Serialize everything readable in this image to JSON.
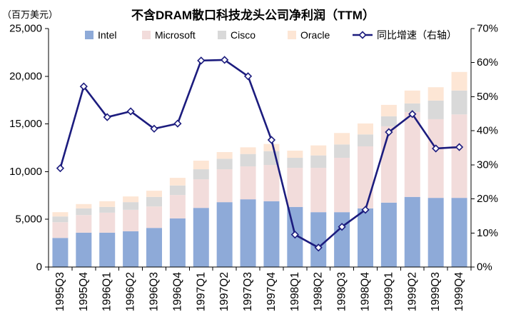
{
  "chart_data": {
    "type": "bar",
    "stacked": true,
    "title": "不含DRAM散口科技龙头公司净利润（TTM）",
    "ylabel": "（百万美元）",
    "categories": [
      "1995Q3",
      "1995Q4",
      "1996Q1",
      "1996Q2",
      "1996Q3",
      "1996Q4",
      "1997Q1",
      "1997Q2",
      "1997Q3",
      "1997Q4",
      "1998Q1",
      "1998Q2",
      "1998Q3",
      "1998Q4",
      "1999Q1",
      "1999Q2",
      "1999Q3",
      "1999Q4"
    ],
    "ylim": [
      0,
      25000
    ],
    "yticks": [
      0,
      5000,
      10000,
      15000,
      20000,
      25000
    ],
    "ytick_labels": [
      "0",
      "5,000",
      "10,000",
      "15,000",
      "20,000",
      "25,000"
    ],
    "y2lim": [
      0,
      70
    ],
    "y2ticks": [
      0,
      10,
      20,
      30,
      40,
      50,
      60,
      70
    ],
    "y2tick_labels": [
      "0%",
      "10%",
      "20%",
      "30%",
      "40%",
      "50%",
      "60%",
      "70%"
    ],
    "legend": "top",
    "grid": false,
    "series": [
      {
        "name": "Intel",
        "type": "bar",
        "axis": "left",
        "color": "#8eaad8",
        "values": [
          3050,
          3600,
          3600,
          3750,
          4100,
          5100,
          6200,
          6800,
          7100,
          6900,
          6300,
          5750,
          5750,
          6150,
          6750,
          7350,
          7250,
          7250
        ]
      },
      {
        "name": "Microsoft",
        "type": "bar",
        "axis": "left",
        "color": "#f2dcdb",
        "values": [
          1650,
          1850,
          2100,
          2250,
          2250,
          2450,
          3000,
          3450,
          3450,
          3800,
          4100,
          4650,
          5700,
          6500,
          8000,
          8900,
          8250,
          8750
        ]
      },
      {
        "name": "Cisco",
        "type": "bar",
        "axis": "left",
        "color": "#d9d9d9",
        "values": [
          600,
          700,
          600,
          800,
          1000,
          1000,
          1050,
          1100,
          1300,
          1450,
          1050,
          1300,
          1400,
          1250,
          1050,
          900,
          1950,
          2500
        ]
      },
      {
        "name": "Oracle",
        "type": "bar",
        "axis": "left",
        "color": "#fde6d5",
        "values": [
          450,
          450,
          600,
          600,
          650,
          800,
          900,
          700,
          700,
          750,
          750,
          1050,
          1200,
          1150,
          1200,
          1350,
          1400,
          1950
        ]
      },
      {
        "name": "同比增速（右轴）",
        "type": "line",
        "axis": "right",
        "color": "#1c1c7e",
        "values": [
          29.0,
          53.0,
          44.0,
          45.7,
          40.6,
          42.1,
          60.6,
          60.8,
          56.0,
          37.3,
          9.5,
          5.7,
          11.8,
          16.8,
          39.6,
          44.9,
          34.8,
          35.2
        ]
      }
    ]
  }
}
